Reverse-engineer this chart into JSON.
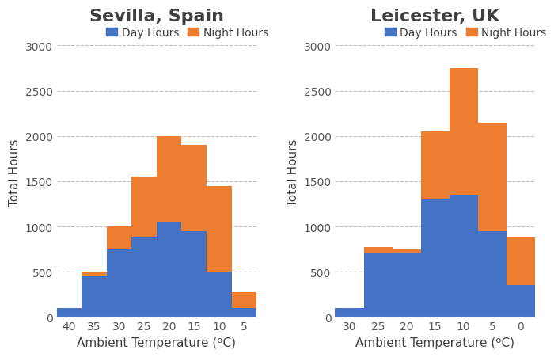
{
  "sevilla": {
    "title": "Sevilla, Spain",
    "categories": [
      "40",
      "35",
      "30",
      "25",
      "20",
      "15",
      "10",
      "5"
    ],
    "day": [
      100,
      450,
      750,
      875,
      1050,
      950,
      500,
      100
    ],
    "night": [
      0,
      50,
      250,
      675,
      950,
      950,
      950,
      175
    ],
    "xlabel": "Ambient Temperature (ºC)",
    "ylabel": "Total Hours",
    "ylim": [
      0,
      3200
    ],
    "yticks": [
      0,
      500,
      1000,
      1500,
      2000,
      2500,
      3000
    ]
  },
  "leicester": {
    "title": "Leicester, UK",
    "categories": [
      "30",
      "25",
      "20",
      "15",
      "10",
      "5",
      "0"
    ],
    "day": [
      100,
      700,
      700,
      1300,
      1350,
      950,
      350
    ],
    "night": [
      0,
      75,
      50,
      750,
      1400,
      1200,
      525
    ],
    "xlabel": "Ambient Temperature (ºC)",
    "ylabel": "Total Hours",
    "ylim": [
      0,
      3200
    ],
    "yticks": [
      0,
      500,
      1000,
      1500,
      2000,
      2500,
      3000
    ]
  },
  "day_color": "#4472c4",
  "night_color": "#ed7d31",
  "bg_color": "#ffffff",
  "fig_bg_color": "#ffffff",
  "legend_day": "Day Hours",
  "legend_night": "Night Hours",
  "title_fontsize": 16,
  "axis_label_fontsize": 11,
  "tick_fontsize": 10,
  "legend_fontsize": 10
}
